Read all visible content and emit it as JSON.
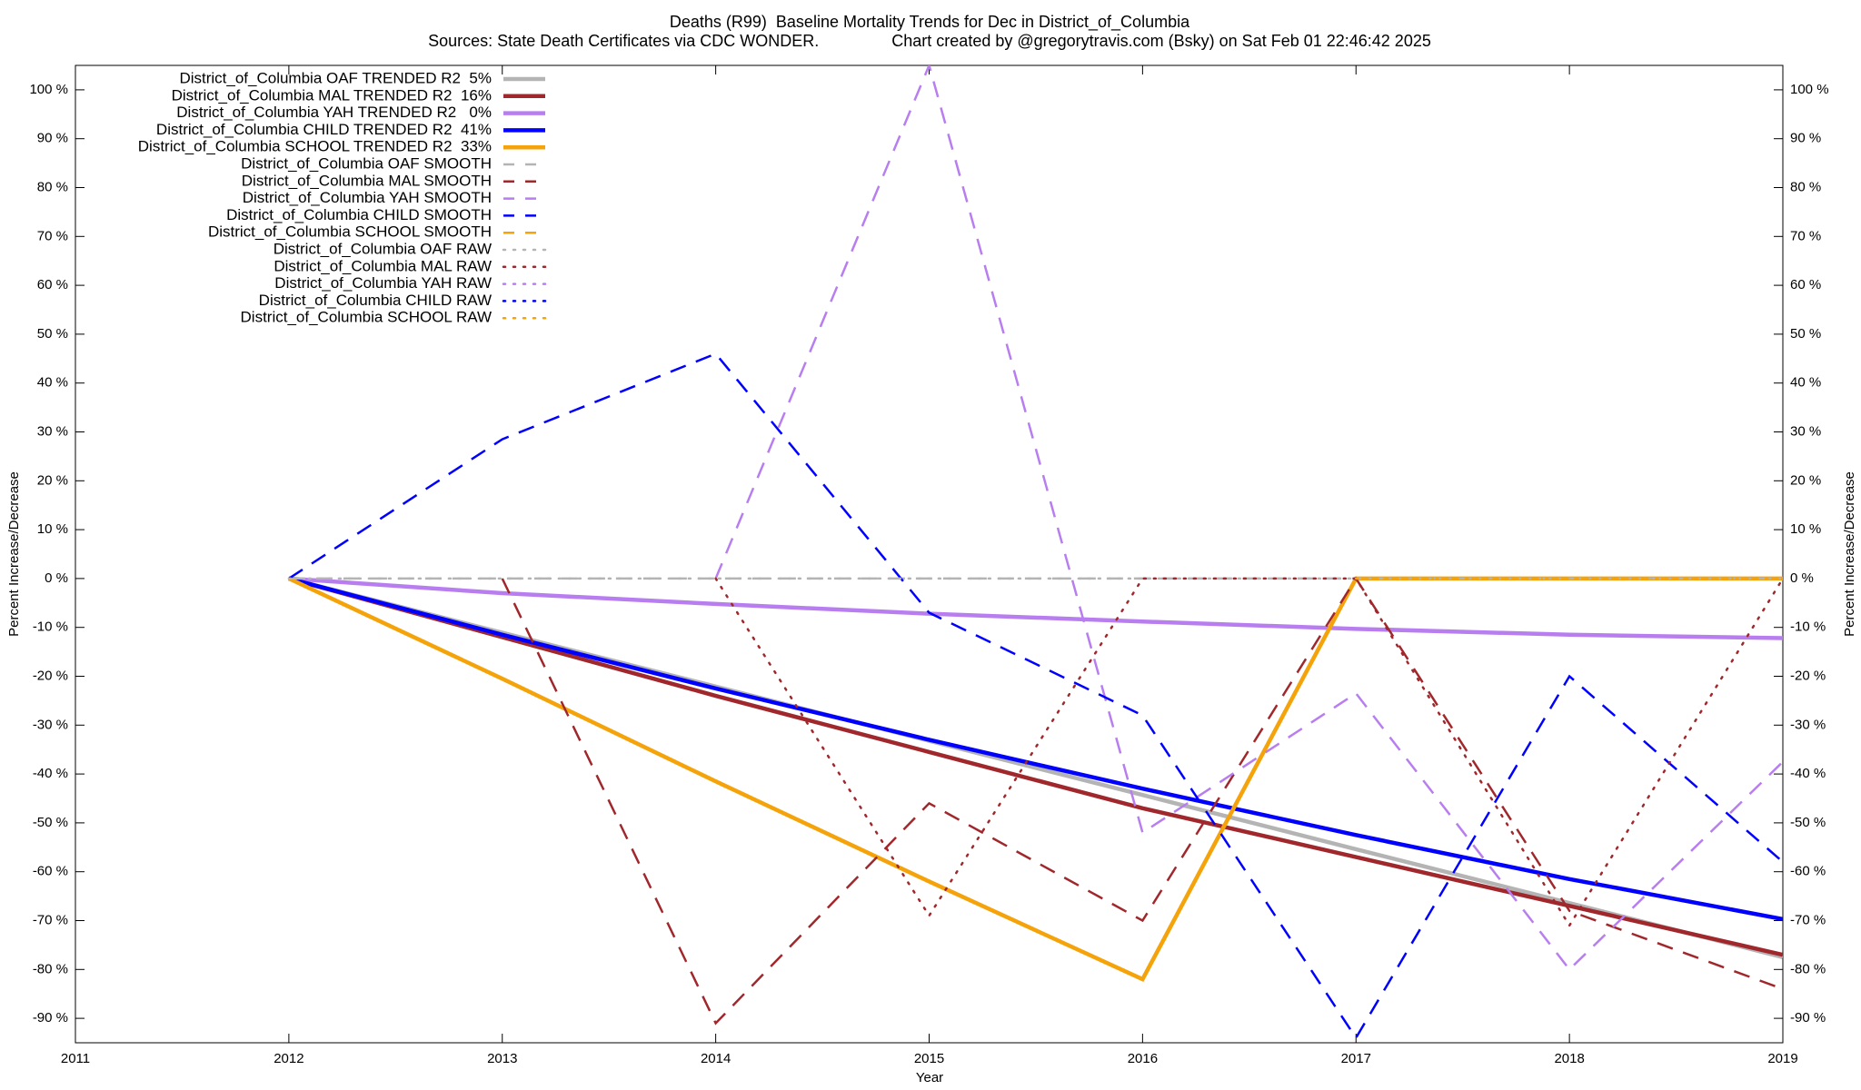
{
  "chart_data": {
    "type": "line",
    "title": "Deaths (R99)  Baseline Mortality Trends for Dec in District_of_Columbia",
    "subtitle": "Sources: State Death Certificates via CDC WONDER.                Chart created by @gregorytravis.com (Bsky) on Sat Feb 01 22:46:42 2025",
    "xlabel": "Year",
    "ylabel": "Percent Increase/Decrease",
    "y2label": "Percent Increase/Decrease",
    "x": [
      2012,
      2013,
      2014,
      2015,
      2016,
      2017,
      2018,
      2019
    ],
    "xlim": [
      2011,
      2019
    ],
    "xticks": [
      2011,
      2012,
      2013,
      2014,
      2015,
      2016,
      2017,
      2018,
      2019
    ],
    "ylim": [
      -95,
      105
    ],
    "yticks": [
      {
        "value": -90,
        "label": "-90 %"
      },
      {
        "value": -80,
        "label": "-80 %"
      },
      {
        "value": -70,
        "label": "-70 %"
      },
      {
        "value": -60,
        "label": "-60 %"
      },
      {
        "value": -50,
        "label": "-50 %"
      },
      {
        "value": -40,
        "label": "-40 %"
      },
      {
        "value": -30,
        "label": "-30 %"
      },
      {
        "value": -20,
        "label": "-20 %"
      },
      {
        "value": -10,
        "label": "-10 %"
      },
      {
        "value": 0,
        "label": "0 %"
      },
      {
        "value": 10,
        "label": "10 %"
      },
      {
        "value": 20,
        "label": "20 %"
      },
      {
        "value": 30,
        "label": "30 %"
      },
      {
        "value": 40,
        "label": "40 %"
      },
      {
        "value": 50,
        "label": "50 %"
      },
      {
        "value": 60,
        "label": "60 %"
      },
      {
        "value": 70,
        "label": "70 %"
      },
      {
        "value": 80,
        "label": "80 %"
      },
      {
        "value": 90,
        "label": "90 %"
      },
      {
        "value": 100,
        "label": "100 %"
      }
    ],
    "legend": "top-left",
    "series": [
      {
        "name": "District_of_Columbia OAF TRENDED R2  5%",
        "color": "#b4b4b4",
        "style": "solid",
        "values": [
          0,
          -11.1,
          -22.1,
          -33.2,
          -44.3,
          -55.4,
          -66.4,
          -77.5
        ]
      },
      {
        "name": "District_of_Columbia MAL TRENDED R2  16%",
        "color": "#a0282c",
        "style": "solid",
        "values": [
          0,
          -12,
          -24,
          -35.5,
          -47,
          -57,
          -67,
          -77
        ]
      },
      {
        "name": "District_of_Columbia YAH TRENDED R2   0%",
        "color": "#b87ef0",
        "style": "solid",
        "values": [
          0,
          -3,
          -5.2,
          -7.2,
          -8.8,
          -10.3,
          -11.5,
          -12.2
        ]
      },
      {
        "name": "District_of_Columbia CHILD TRENDED R2  41%",
        "color": "#0000ff",
        "style": "solid",
        "values": [
          0,
          -11.5,
          -22.5,
          -33,
          -43,
          -52.5,
          -61.5,
          -69.7
        ]
      },
      {
        "name": "District_of_Columbia SCHOOL TRENDED R2  33%",
        "color": "#f5a30a",
        "style": "solid",
        "values": [
          0,
          -20.5,
          -41.5,
          -62,
          -82,
          0,
          0,
          0
        ]
      },
      {
        "name": "District_of_Columbia OAF SMOOTH",
        "color": "#b4b4b4",
        "style": "dashed",
        "values": [
          0,
          0,
          0,
          0,
          0,
          0,
          0,
          0
        ]
      },
      {
        "name": "District_of_Columbia MAL SMOOTH",
        "color": "#a0282c",
        "style": "dashed",
        "values": [
          null,
          0,
          -91,
          -46,
          -70,
          0,
          -68,
          -84
        ]
      },
      {
        "name": "District_of_Columbia YAH SMOOTH",
        "color": "#b87ef0",
        "style": "dashed",
        "values": [
          null,
          null,
          0,
          105,
          -52,
          -23.5,
          -80,
          -37.5
        ]
      },
      {
        "name": "District_of_Columbia CHILD SMOOTH",
        "color": "#0000ff",
        "style": "dashed",
        "values": [
          0,
          28.5,
          46,
          -7,
          -28,
          -94,
          -20,
          -58
        ]
      },
      {
        "name": "District_of_Columbia SCHOOL SMOOTH",
        "color": "#f5a30a",
        "style": "dashed",
        "values": [
          null,
          null,
          null,
          null,
          null,
          0,
          0,
          0
        ]
      },
      {
        "name": "District_of_Columbia OAF RAW",
        "color": "#b4b4b4",
        "style": "dotted",
        "values": [
          0,
          0,
          0,
          0,
          0,
          0,
          0,
          0
        ]
      },
      {
        "name": "District_of_Columbia MAL RAW",
        "color": "#a0282c",
        "style": "dotted",
        "values": [
          null,
          null,
          0,
          -69,
          0,
          0,
          -71,
          0
        ]
      },
      {
        "name": "District_of_Columbia YAH RAW",
        "color": "#b87ef0",
        "style": "dotted",
        "values": [
          null,
          null,
          null,
          null,
          null,
          null,
          null,
          null
        ]
      },
      {
        "name": "District_of_Columbia CHILD RAW",
        "color": "#0000ff",
        "style": "dotted",
        "values": [
          null,
          null,
          null,
          null,
          null,
          null,
          null,
          null
        ]
      },
      {
        "name": "District_of_Columbia SCHOOL RAW",
        "color": "#f5a30a",
        "style": "dotted",
        "values": [
          null,
          null,
          null,
          null,
          null,
          0,
          0,
          0
        ]
      }
    ]
  }
}
